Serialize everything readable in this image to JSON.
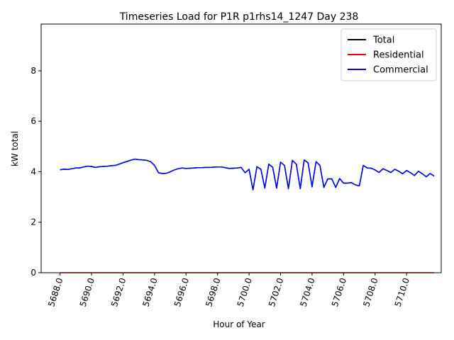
{
  "chart_data": {
    "type": "line",
    "title": "Timeseries Load for P1R p1rhs14_1247  Day 238",
    "xlabel": "Hour of Year",
    "ylabel": "kW total",
    "xlim": [
      5686.8,
      5712.2
    ],
    "ylim": [
      0,
      9.85
    ],
    "x_ticks": [
      5688,
      5690,
      5692,
      5694,
      5696,
      5698,
      5700,
      5702,
      5704,
      5706,
      5708,
      5710
    ],
    "x_tick_labels": [
      "5688.0",
      "5690.0",
      "5692.0",
      "5694.0",
      "5696.0",
      "5698.0",
      "5700.0",
      "5702.0",
      "5704.0",
      "5706.0",
      "5708.0",
      "5710.0"
    ],
    "y_ticks": [
      0,
      2,
      4,
      6,
      8
    ],
    "y_tick_labels": [
      "0",
      "2",
      "4",
      "6",
      "8"
    ],
    "grid": false,
    "legend_position": "top-right",
    "x": [
      5688.0,
      5688.25,
      5688.5,
      5688.75,
      5689.0,
      5689.25,
      5689.5,
      5689.75,
      5690.0,
      5690.25,
      5690.5,
      5690.75,
      5691.0,
      5691.25,
      5691.5,
      5691.75,
      5692.0,
      5692.25,
      5692.5,
      5692.75,
      5693.0,
      5693.25,
      5693.5,
      5693.75,
      5694.0,
      5694.25,
      5694.5,
      5694.75,
      5695.0,
      5695.25,
      5695.5,
      5695.75,
      5696.0,
      5696.25,
      5696.5,
      5696.75,
      5697.0,
      5697.25,
      5697.5,
      5697.75,
      5698.0,
      5698.25,
      5698.5,
      5698.75,
      5699.0,
      5699.25,
      5699.5,
      5699.75,
      5700.0,
      5700.25,
      5700.5,
      5700.75,
      5701.0,
      5701.25,
      5701.5,
      5701.75,
      5702.0,
      5702.25,
      5702.5,
      5702.75,
      5703.0,
      5703.25,
      5703.5,
      5703.75,
      5704.0,
      5704.25,
      5704.5,
      5704.75,
      5705.0,
      5705.25,
      5705.5,
      5705.75,
      5706.0,
      5706.25,
      5706.5,
      5706.75,
      5707.0,
      5707.25,
      5707.5,
      5707.75,
      5708.0,
      5708.25,
      5708.5,
      5708.75,
      5709.0,
      5709.25,
      5709.5,
      5709.75,
      5710.0,
      5710.25,
      5710.5,
      5710.75,
      5711.0,
      5711.25,
      5711.5,
      5711.75
    ],
    "series": [
      {
        "name": "Total",
        "color": "#000000",
        "values": [
          4.08,
          4.1,
          4.09,
          4.12,
          4.15,
          4.15,
          4.19,
          4.22,
          4.21,
          4.17,
          4.2,
          4.21,
          4.22,
          4.24,
          4.25,
          4.3,
          4.36,
          4.41,
          4.46,
          4.5,
          4.48,
          4.47,
          4.45,
          4.4,
          4.25,
          3.96,
          3.93,
          3.94,
          4.0,
          4.07,
          4.12,
          4.15,
          4.13,
          4.14,
          4.15,
          4.16,
          4.16,
          4.17,
          4.17,
          4.18,
          4.19,
          4.19,
          4.16,
          4.13,
          4.14,
          4.15,
          4.17,
          3.96,
          4.1,
          3.28,
          4.2,
          4.1,
          3.35,
          4.3,
          4.18,
          3.35,
          4.38,
          4.25,
          3.33,
          4.45,
          4.3,
          3.33,
          4.47,
          4.35,
          3.4,
          4.4,
          4.25,
          3.38,
          3.72,
          3.72,
          3.38,
          3.73,
          3.55,
          3.55,
          3.57,
          3.48,
          3.44,
          4.25,
          4.15,
          4.14,
          4.07,
          3.97,
          4.12,
          4.05,
          3.97,
          4.1,
          4.02,
          3.92,
          4.05,
          3.96,
          3.85,
          4.02,
          3.92,
          3.8,
          3.93,
          3.83
        ]
      },
      {
        "name": "Residential",
        "color": "#ff0000",
        "values": [
          0,
          0,
          0,
          0,
          0,
          0,
          0,
          0,
          0,
          0,
          0,
          0,
          0,
          0,
          0,
          0,
          0,
          0,
          0,
          0,
          0,
          0,
          0,
          0,
          0,
          0,
          0,
          0,
          0,
          0,
          0,
          0,
          0,
          0,
          0,
          0,
          0,
          0,
          0,
          0,
          0,
          0,
          0,
          0,
          0,
          0,
          0,
          0,
          0,
          0,
          0,
          0,
          0,
          0,
          0,
          0,
          0,
          0,
          0,
          0,
          0,
          0,
          0,
          0,
          0,
          0,
          0,
          0,
          0,
          0,
          0,
          0,
          0,
          0,
          0,
          0,
          0,
          0,
          0,
          0,
          0,
          0,
          0,
          0,
          0,
          0,
          0,
          0,
          0,
          0,
          0,
          0,
          0,
          0,
          0,
          0
        ]
      },
      {
        "name": "Commercial",
        "color": "#0000ff",
        "values": [
          4.08,
          4.1,
          4.09,
          4.12,
          4.15,
          4.15,
          4.19,
          4.22,
          4.21,
          4.17,
          4.2,
          4.21,
          4.22,
          4.24,
          4.25,
          4.3,
          4.36,
          4.41,
          4.46,
          4.5,
          4.48,
          4.47,
          4.45,
          4.4,
          4.25,
          3.96,
          3.93,
          3.94,
          4.0,
          4.07,
          4.12,
          4.15,
          4.13,
          4.14,
          4.15,
          4.16,
          4.16,
          4.17,
          4.17,
          4.18,
          4.19,
          4.19,
          4.16,
          4.13,
          4.14,
          4.15,
          4.17,
          3.96,
          4.1,
          3.28,
          4.2,
          4.1,
          3.35,
          4.3,
          4.18,
          3.35,
          4.38,
          4.25,
          3.33,
          4.45,
          4.3,
          3.33,
          4.47,
          4.35,
          3.4,
          4.4,
          4.25,
          3.38,
          3.72,
          3.72,
          3.38,
          3.73,
          3.55,
          3.55,
          3.57,
          3.48,
          3.44,
          4.25,
          4.15,
          4.14,
          4.07,
          3.97,
          4.12,
          4.05,
          3.97,
          4.1,
          4.02,
          3.92,
          4.05,
          3.96,
          3.85,
          4.02,
          3.92,
          3.8,
          3.93,
          3.83
        ]
      }
    ]
  }
}
